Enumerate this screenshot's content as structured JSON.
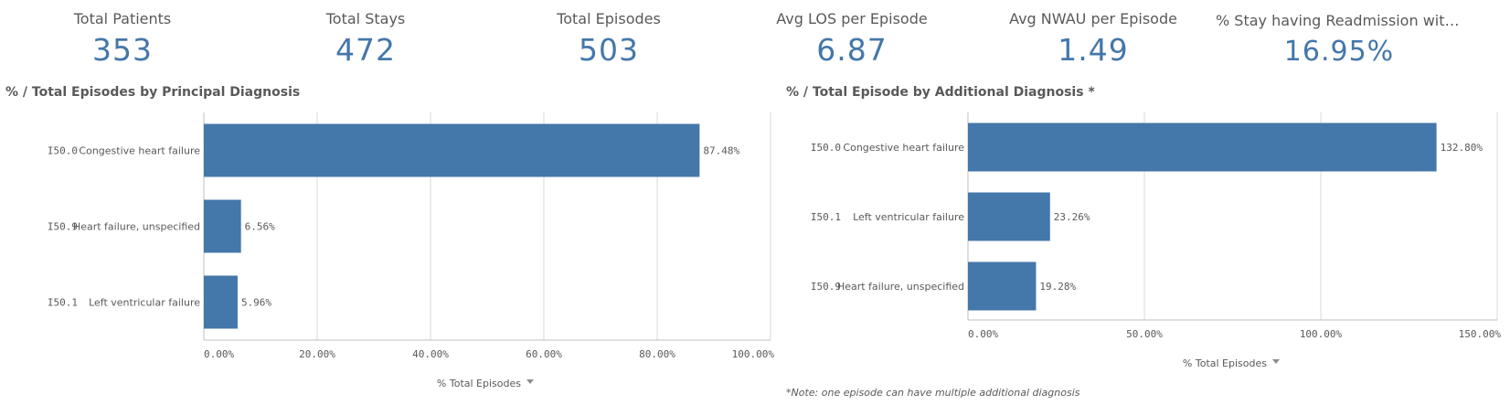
{
  "kpis": [
    {
      "label": "Total Patients",
      "value": "353"
    },
    {
      "label": "Total Stays",
      "value": "472"
    },
    {
      "label": "Total Episodes",
      "value": "503"
    },
    {
      "label": "Avg LOS per Episode",
      "value": "6.87"
    },
    {
      "label": "Avg NWAU per Episode",
      "value": "1.49"
    },
    {
      "label": "% Stay having Readmission withi...",
      "value": "16.95%"
    }
  ],
  "chart_data": [
    {
      "type": "bar",
      "orientation": "horizontal",
      "title": "% / Total Episodes by Principal Diagnosis",
      "categories": [
        {
          "code": "I50.0",
          "name": "Congestive heart failure"
        },
        {
          "code": "I50.9",
          "name": "Heart failure, unspecified"
        },
        {
          "code": "I50.1",
          "name": "Left ventricular failure"
        }
      ],
      "values": [
        87.48,
        6.56,
        5.96
      ],
      "value_labels": [
        "87.48%",
        "6.56%",
        "5.96%"
      ],
      "xlim": [
        0,
        100
      ],
      "ticks": [
        "0.00%",
        "20.00%",
        "40.00%",
        "60.00%",
        "80.00%",
        "100.00%"
      ],
      "xlabel": "% Total Episodes",
      "grid": true,
      "color": "#4477aa"
    },
    {
      "type": "bar",
      "orientation": "horizontal",
      "title": "% / Total Episode by Additional Diagnosis *",
      "categories": [
        {
          "code": "I50.0",
          "name": "Congestive heart failure"
        },
        {
          "code": "I50.1",
          "name": "Left ventricular failure"
        },
        {
          "code": "I50.9",
          "name": "Heart failure, unspecified"
        }
      ],
      "values": [
        132.8,
        23.26,
        19.28
      ],
      "value_labels": [
        "132.80%",
        "23.26%",
        "19.28%"
      ],
      "xlim": [
        0,
        150
      ],
      "ticks": [
        "0.00%",
        "50.00%",
        "100.00%",
        "150.00%"
      ],
      "xlabel": "% Total Episodes",
      "grid": true,
      "color": "#4477aa"
    }
  ],
  "note": "*Note: one episode can have multiple additional diagnosis"
}
